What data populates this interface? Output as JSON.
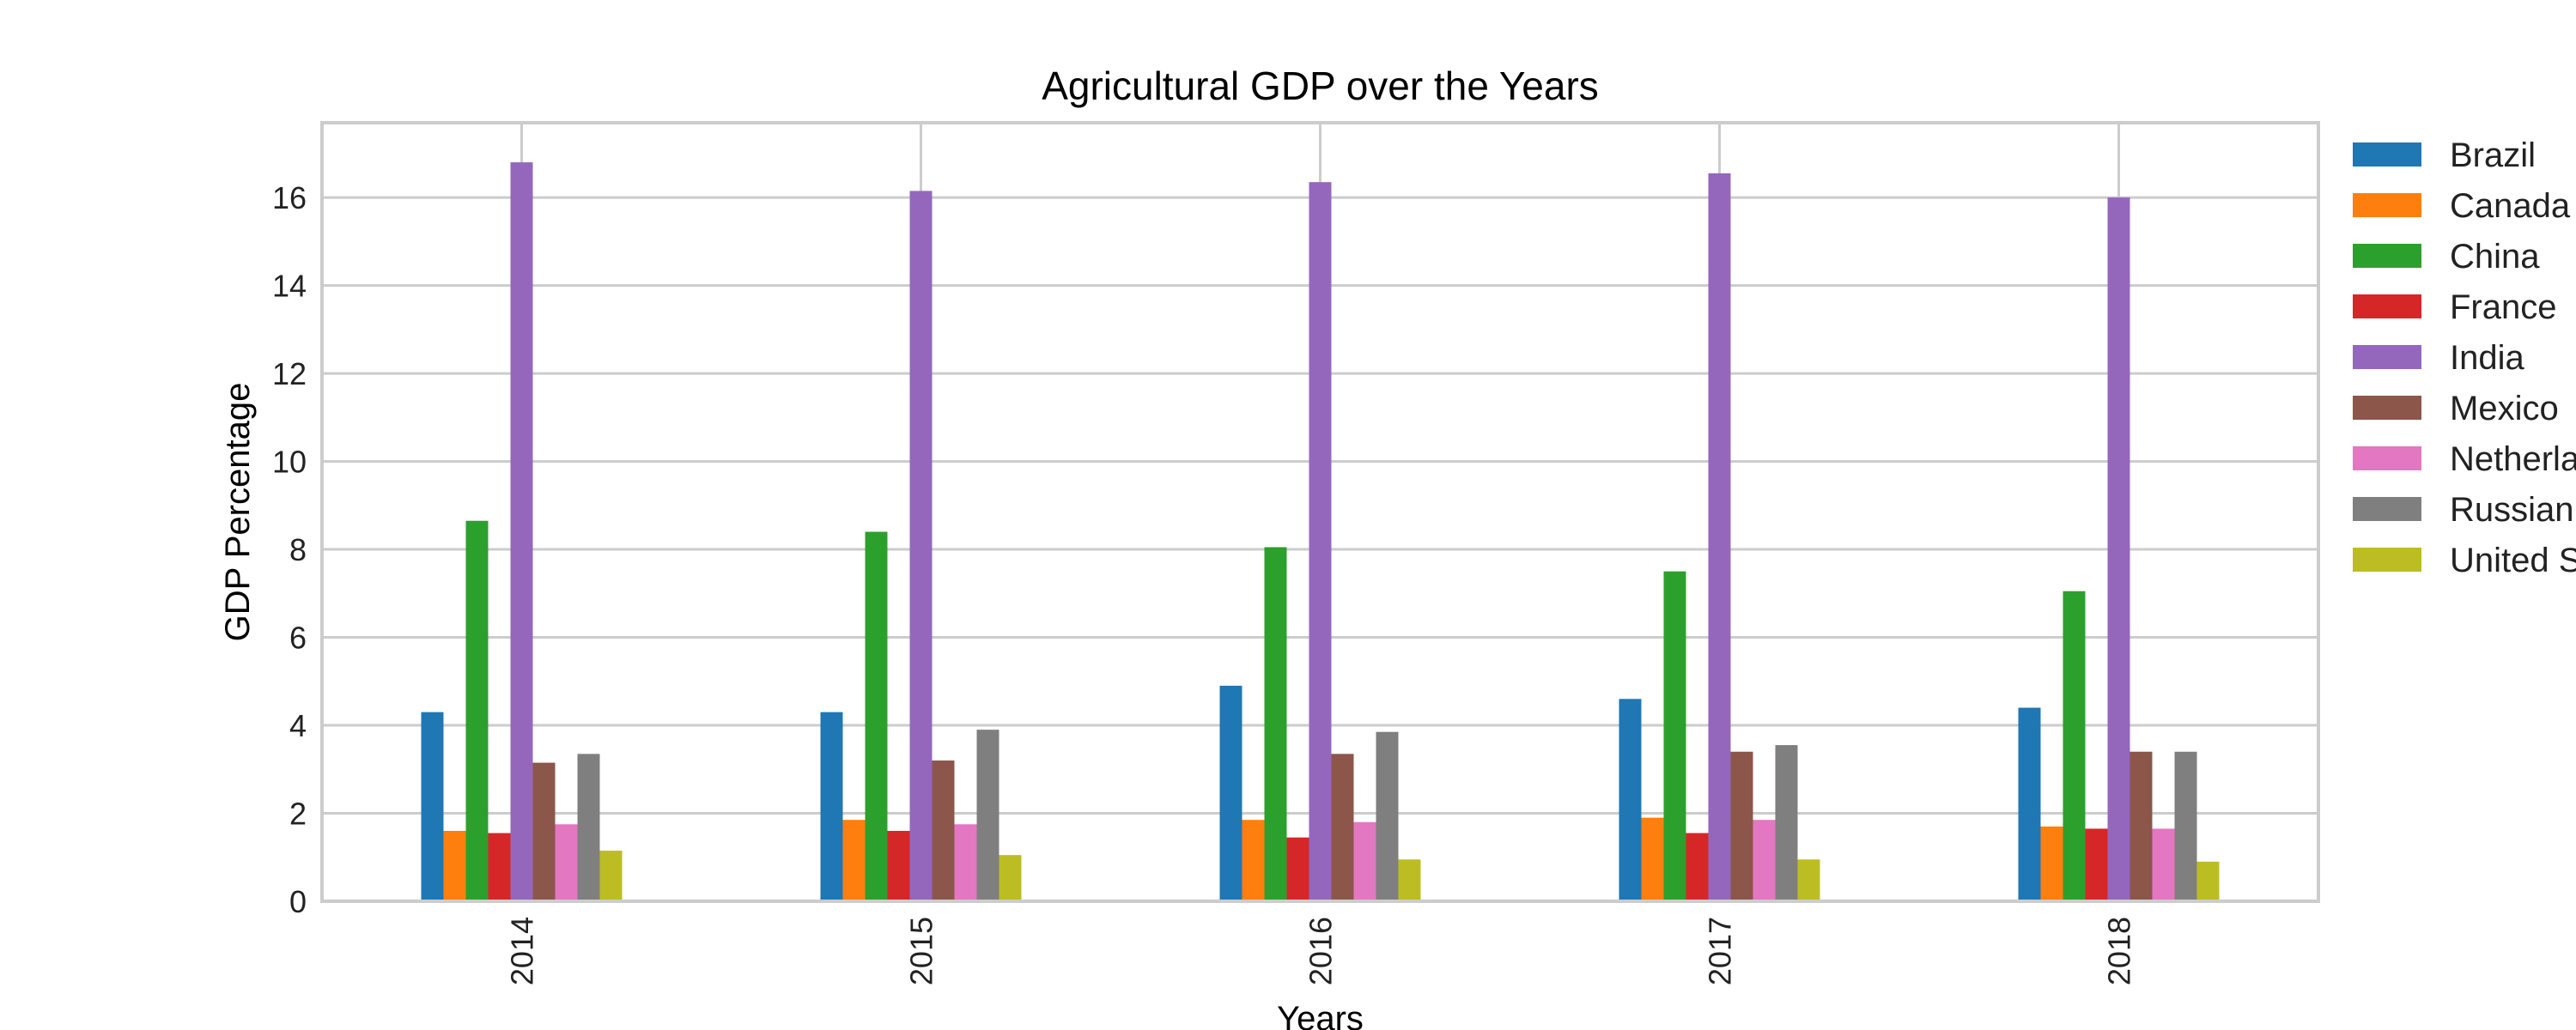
{
  "chart_data": {
    "type": "bar",
    "title": "Agricultural GDP over the Years",
    "xlabel": "Years",
    "ylabel": "GDP Percentage",
    "categories": [
      "2014",
      "2015",
      "2016",
      "2017",
      "2018"
    ],
    "ylim": [
      0,
      17.7
    ],
    "yticks": [
      0,
      2,
      4,
      6,
      8,
      10,
      12,
      14,
      16
    ],
    "grid": true,
    "legend_position": "outside-right",
    "series": [
      {
        "name": "Brazil",
        "color": "#1f77b4",
        "values": [
          4.3,
          4.3,
          4.9,
          4.6,
          4.4
        ]
      },
      {
        "name": "Canada",
        "color": "#ff7f0e",
        "values": [
          1.6,
          1.85,
          1.85,
          1.9,
          1.7
        ]
      },
      {
        "name": "China",
        "color": "#2ca02c",
        "values": [
          8.65,
          8.4,
          8.05,
          7.5,
          7.05
        ]
      },
      {
        "name": "France",
        "color": "#d62728",
        "values": [
          1.55,
          1.6,
          1.45,
          1.55,
          1.65
        ]
      },
      {
        "name": "India",
        "color": "#9467bd",
        "values": [
          16.8,
          16.15,
          16.35,
          16.55,
          16.0
        ]
      },
      {
        "name": "Mexico",
        "color": "#8c564b",
        "values": [
          3.15,
          3.2,
          3.35,
          3.4,
          3.4
        ]
      },
      {
        "name": "Netherlands",
        "color": "#e377c2",
        "values": [
          1.75,
          1.75,
          1.8,
          1.85,
          1.65
        ]
      },
      {
        "name": "Russian Federation",
        "color": "#7f7f7f",
        "values": [
          3.35,
          3.9,
          3.85,
          3.55,
          3.4
        ]
      },
      {
        "name": "United States",
        "color": "#bcbd22",
        "values": [
          1.15,
          1.05,
          0.95,
          0.95,
          0.9
        ]
      }
    ]
  }
}
